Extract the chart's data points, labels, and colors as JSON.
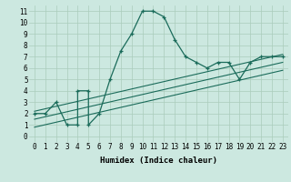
{
  "xlabel": "Humidex (Indice chaleur)",
  "bg_color": "#cce8e0",
  "line_color": "#1a6b5a",
  "xlim": [
    -0.5,
    23.5
  ],
  "ylim": [
    -0.5,
    11.5
  ],
  "xticks": [
    0,
    1,
    2,
    3,
    4,
    5,
    6,
    7,
    8,
    9,
    10,
    11,
    12,
    13,
    14,
    15,
    16,
    17,
    18,
    19,
    20,
    21,
    22,
    23
  ],
  "yticks": [
    0,
    1,
    2,
    3,
    4,
    5,
    6,
    7,
    8,
    9,
    10,
    11
  ],
  "grid_color": "#aaccbb",
  "main_x": [
    0,
    1,
    2,
    3,
    4,
    4,
    5,
    5,
    6,
    7,
    8,
    9,
    10,
    11,
    12,
    13,
    14,
    15,
    16,
    17,
    18,
    19,
    20,
    21,
    22,
    23
  ],
  "main_y": [
    2,
    2,
    3,
    1,
    1,
    4,
    4,
    1,
    2,
    5,
    7.5,
    9,
    11,
    11,
    10.5,
    8.5,
    7,
    6.5,
    6,
    6.5,
    6.5,
    5,
    6.5,
    7,
    7,
    7
  ],
  "diag_lines": [
    {
      "x": [
        0,
        23
      ],
      "y": [
        1.5,
        6.5
      ]
    },
    {
      "x": [
        0,
        23
      ],
      "y": [
        2.2,
        7.2
      ]
    },
    {
      "x": [
        0,
        23
      ],
      "y": [
        0.8,
        5.8
      ]
    }
  ],
  "xlabel_fontsize": 6.5,
  "tick_fontsize": 5.5
}
